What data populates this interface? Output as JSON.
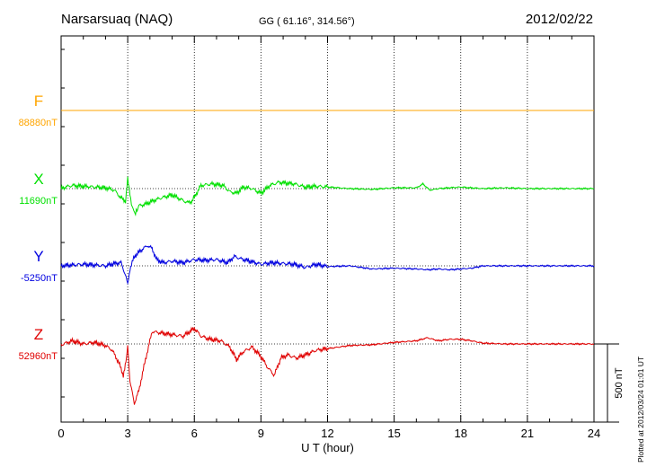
{
  "header": {
    "station": "Narsarsuaq (NAQ)",
    "coordinates": "GG ( 61.16°, 314.56°)",
    "date": "2012/02/22"
  },
  "footnote": "Plotted at 2012/03/24 01:01 UT",
  "chart_data": {
    "type": "line",
    "title": "Narsarsuaq (NAQ)",
    "xlabel": "U T (hour)",
    "ylabel": "",
    "xlim": [
      0,
      24
    ],
    "x_ticks": [
      "0",
      "3",
      "6",
      "9",
      "12",
      "15",
      "18",
      "21",
      "24"
    ],
    "grid": true,
    "scale_bar": {
      "label": "500 nT",
      "value_nT": 500
    },
    "series": [
      {
        "name": "F",
        "baseline_label": "88880nT",
        "color": "#ffa500",
        "x": [
          0,
          24
        ],
        "y": [
          0,
          0
        ]
      },
      {
        "name": "X",
        "baseline_label": "11690nT",
        "color": "#00e000",
        "x": [
          0,
          0.2,
          0.5,
          1.0,
          1.5,
          2.0,
          2.4,
          2.7,
          2.9,
          3.0,
          3.1,
          3.2,
          3.35,
          3.5,
          3.8,
          4.1,
          4.5,
          5.0,
          5.4,
          5.7,
          5.9,
          6.3,
          6.8,
          7.3,
          7.6,
          7.9,
          8.2,
          8.6,
          9.0,
          9.4,
          9.8,
          10.5,
          11.0,
          11.5,
          12.0,
          13.0,
          14.0,
          14.5,
          15.0,
          16.0,
          16.3,
          16.6,
          17.0,
          17.5,
          18.0,
          18.4,
          19.0,
          20.0,
          21.0,
          22.0,
          23.0,
          24.0
        ],
        "y": [
          0,
          10,
          20,
          15,
          10,
          5,
          -10,
          -60,
          -80,
          60,
          -30,
          -120,
          -160,
          -110,
          -100,
          -80,
          -60,
          -40,
          -70,
          -90,
          -80,
          20,
          30,
          20,
          -20,
          -30,
          10,
          0,
          -30,
          20,
          40,
          30,
          10,
          15,
          10,
          0,
          -5,
          0,
          5,
          5,
          30,
          -10,
          0,
          5,
          10,
          5,
          0,
          5,
          0,
          0,
          0,
          0
        ]
      },
      {
        "name": "Y",
        "baseline_label": "-5250nT",
        "color": "#0000e0",
        "x": [
          0,
          0.5,
          1.0,
          1.5,
          2.0,
          2.4,
          2.7,
          2.9,
          3.0,
          3.1,
          3.3,
          3.6,
          3.9,
          4.1,
          4.3,
          4.6,
          5.0,
          5.5,
          6.0,
          6.5,
          7.0,
          7.5,
          7.8,
          8.1,
          8.5,
          9.0,
          9.5,
          10.0,
          10.5,
          11.0,
          11.5,
          12.0,
          13.0,
          14.0,
          15.0,
          16.0,
          16.5,
          17.0,
          17.5,
          18.0,
          18.5,
          19.0,
          20.0,
          22.0,
          24.0
        ],
        "y": [
          0,
          5,
          10,
          5,
          0,
          15,
          20,
          -60,
          -120,
          -20,
          60,
          100,
          130,
          110,
          40,
          20,
          30,
          20,
          40,
          35,
          40,
          20,
          60,
          45,
          30,
          10,
          20,
          15,
          10,
          -10,
          10,
          -5,
          0,
          -20,
          -15,
          -20,
          -25,
          -20,
          -25,
          -20,
          -15,
          0,
          0,
          0,
          0
        ]
      },
      {
        "name": "Z",
        "baseline_label": "52960nT",
        "color": "#e00000",
        "x": [
          0,
          0.5,
          1.0,
          1.5,
          2.0,
          2.3,
          2.6,
          2.8,
          2.95,
          3.0,
          3.1,
          3.3,
          3.5,
          3.8,
          4.1,
          4.5,
          5.0,
          5.5,
          6.0,
          6.3,
          6.7,
          7.2,
          7.6,
          7.9,
          8.2,
          8.6,
          9.0,
          9.3,
          9.6,
          9.9,
          10.2,
          10.6,
          11.0,
          11.5,
          12.0,
          13.0,
          14.0,
          15.0,
          16.0,
          16.5,
          17.0,
          17.5,
          18.0,
          18.5,
          19.0,
          20.0,
          21.0,
          22.0,
          23.0,
          24.0
        ],
        "y": [
          -5,
          20,
          0,
          10,
          -10,
          -40,
          -120,
          -200,
          -80,
          0,
          -240,
          -380,
          -300,
          -100,
          80,
          70,
          60,
          50,
          100,
          50,
          30,
          20,
          -20,
          -100,
          -50,
          -20,
          -80,
          -150,
          -200,
          -90,
          -70,
          -90,
          -70,
          -40,
          -30,
          -10,
          -5,
          10,
          20,
          40,
          20,
          30,
          30,
          20,
          5,
          0,
          0,
          0,
          0,
          0
        ]
      }
    ]
  }
}
